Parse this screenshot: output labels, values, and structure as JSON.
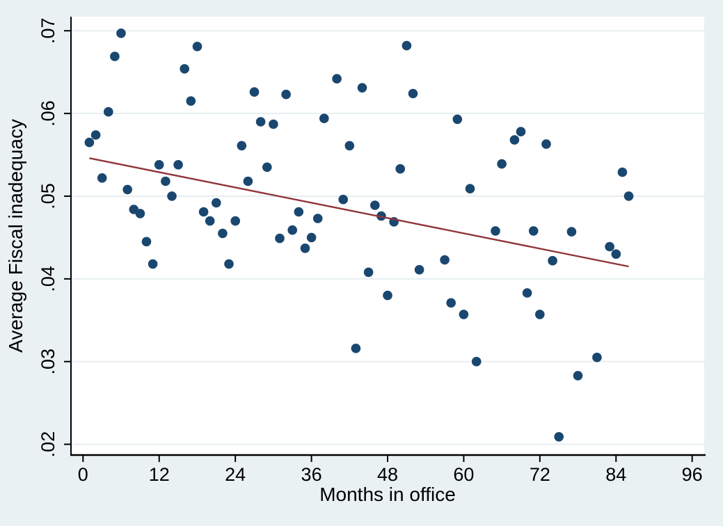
{
  "chart_data": {
    "type": "scatter",
    "title": "",
    "xlabel": "Months in office",
    "ylabel": "Average Fiscal inadequacy",
    "x_ticks": [
      0,
      12,
      24,
      36,
      48,
      60,
      72,
      84,
      96
    ],
    "x_tick_labels": [
      "0",
      "12",
      "24",
      "36",
      "48",
      "60",
      "72",
      "84",
      "96"
    ],
    "y_ticks": [
      0.02,
      0.03,
      0.04,
      0.05,
      0.06,
      0.07
    ],
    "y_tick_labels": [
      ".02",
      ".03",
      ".04",
      ".05",
      ".06",
      ".07"
    ],
    "xlim": [
      -1.9,
      97.9
    ],
    "ylim": [
      0.0187,
      0.0717
    ],
    "grid": "horizontal-only",
    "legend": "none",
    "colors": {
      "figure_background": "#eaf1f2",
      "plot_background": "#ffffff",
      "gridline": "#e7eef1",
      "axis": "#000000",
      "scatter": "#1a476f",
      "fit_line": "#90353b"
    },
    "series": [
      {
        "name": "Average Fiscal inadequacy",
        "type": "scatter",
        "color": "#1a476f",
        "marker": "circle",
        "marker_radius": 6.8,
        "points": [
          [
            1,
            0.0565
          ],
          [
            2,
            0.0574
          ],
          [
            3,
            0.0522
          ],
          [
            4,
            0.0602
          ],
          [
            5,
            0.0669
          ],
          [
            6,
            0.0697
          ],
          [
            7,
            0.0508
          ],
          [
            8,
            0.0484
          ],
          [
            9,
            0.0479
          ],
          [
            10,
            0.0445
          ],
          [
            11,
            0.0418
          ],
          [
            12,
            0.0538
          ],
          [
            13,
            0.0518
          ],
          [
            14,
            0.05
          ],
          [
            15,
            0.0538
          ],
          [
            16,
            0.0654
          ],
          [
            17,
            0.0615
          ],
          [
            18,
            0.0681
          ],
          [
            19,
            0.0481
          ],
          [
            20,
            0.047
          ],
          [
            21,
            0.0492
          ],
          [
            22,
            0.0455
          ],
          [
            23,
            0.0418
          ],
          [
            24,
            0.047
          ],
          [
            25,
            0.0561
          ],
          [
            26,
            0.0518
          ],
          [
            27,
            0.0626
          ],
          [
            28,
            0.059
          ],
          [
            29,
            0.0535
          ],
          [
            30,
            0.0587
          ],
          [
            31,
            0.0449
          ],
          [
            32,
            0.0623
          ],
          [
            33,
            0.0459
          ],
          [
            34,
            0.0481
          ],
          [
            35,
            0.0437
          ],
          [
            36,
            0.045
          ],
          [
            37,
            0.0473
          ],
          [
            38,
            0.0594
          ],
          [
            40,
            0.0642
          ],
          [
            41,
            0.0496
          ],
          [
            42,
            0.0561
          ],
          [
            43,
            0.0316
          ],
          [
            44,
            0.0631
          ],
          [
            45,
            0.0408
          ],
          [
            46,
            0.0489
          ],
          [
            47,
            0.0476
          ],
          [
            48,
            0.038
          ],
          [
            49,
            0.0469
          ],
          [
            50,
            0.0533
          ],
          [
            51,
            0.0682
          ],
          [
            52,
            0.0624
          ],
          [
            53,
            0.0411
          ],
          [
            57,
            0.0423
          ],
          [
            58,
            0.0371
          ],
          [
            59,
            0.0593
          ],
          [
            60,
            0.0357
          ],
          [
            61,
            0.0509
          ],
          [
            62,
            0.03
          ],
          [
            65,
            0.0458
          ],
          [
            66,
            0.0539
          ],
          [
            68,
            0.0568
          ],
          [
            69,
            0.0578
          ],
          [
            70,
            0.0383
          ],
          [
            71,
            0.0458
          ],
          [
            72,
            0.0357
          ],
          [
            73,
            0.0563
          ],
          [
            74,
            0.0422
          ],
          [
            75,
            0.0209
          ],
          [
            77,
            0.0457
          ],
          [
            78,
            0.0283
          ],
          [
            81,
            0.0305
          ],
          [
            83,
            0.0439
          ],
          [
            84,
            0.043
          ],
          [
            85,
            0.0529
          ],
          [
            86,
            0.05
          ]
        ]
      },
      {
        "name": "Linear fit",
        "type": "line",
        "color": "#90353b",
        "line_width": 2.4,
        "points": [
          [
            1,
            0.0546
          ],
          [
            86,
            0.0415
          ]
        ]
      }
    ]
  }
}
